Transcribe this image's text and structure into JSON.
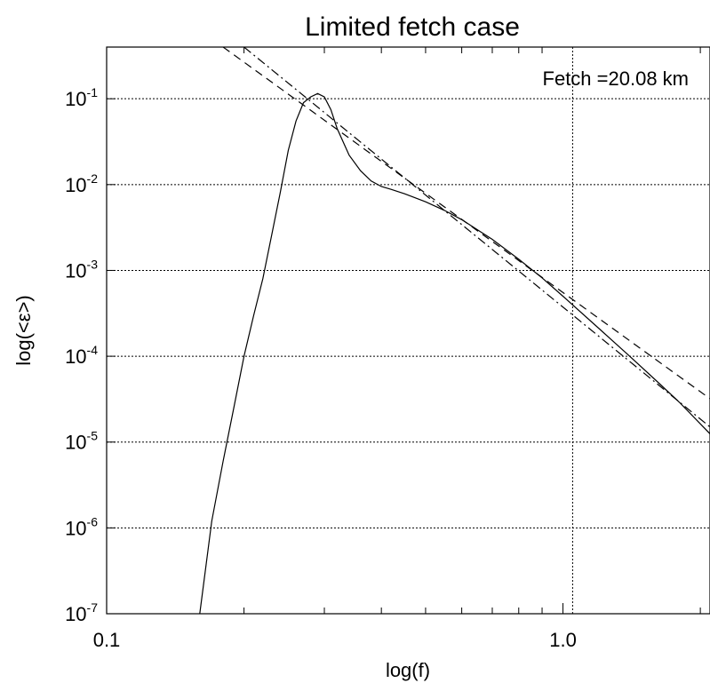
{
  "chart_data": {
    "type": "line",
    "title": "Limited fetch case",
    "xlabel": "log(f)",
    "ylabel": "log(<ε>)",
    "xscale": "log",
    "yscale": "log",
    "xlim": [
      0.1,
      2.1
    ],
    "ylim": [
      1e-07,
      0.4
    ],
    "x_ticks": [
      {
        "value": 0.1,
        "label": "0.1"
      },
      {
        "value": 1.0,
        "label": "1.0"
      }
    ],
    "x_minor_ticks": [
      0.2,
      0.3,
      0.4,
      0.5,
      0.6,
      0.7,
      0.8,
      0.9,
      2.0
    ],
    "y_ticks": [
      {
        "value": 1e-07,
        "base": "10",
        "exp": "-7"
      },
      {
        "value": 1e-06,
        "base": "10",
        "exp": "-6"
      },
      {
        "value": 1e-05,
        "base": "10",
        "exp": "-5"
      },
      {
        "value": 0.0001,
        "base": "10",
        "exp": "-4"
      },
      {
        "value": 0.001,
        "base": "10",
        "exp": "-3"
      },
      {
        "value": 0.01,
        "base": "10",
        "exp": "-2"
      },
      {
        "value": 0.1,
        "base": "10",
        "exp": "-1"
      }
    ],
    "grid": {
      "horizontal": "at major y ticks",
      "vertical_x": [
        1.05
      ],
      "style": "dashed"
    },
    "annotation": "Fetch =20.08 km",
    "series": [
      {
        "style": "solid",
        "x": [
          0.16,
          0.17,
          0.18,
          0.19,
          0.2,
          0.21,
          0.22,
          0.23,
          0.24,
          0.25,
          0.26,
          0.27,
          0.28,
          0.29,
          0.3,
          0.31,
          0.32,
          0.34,
          0.36,
          0.38,
          0.4,
          0.42,
          0.45,
          0.5,
          0.55,
          0.6,
          0.7,
          0.8,
          0.9,
          1.0,
          1.2,
          1.4,
          1.6,
          1.8,
          2.1
        ],
        "y": [
          1e-07,
          1.2e-06,
          6e-06,
          2.5e-05,
          0.0001,
          0.0003,
          0.0008,
          0.0026,
          0.008,
          0.025,
          0.055,
          0.09,
          0.105,
          0.115,
          0.105,
          0.075,
          0.045,
          0.022,
          0.0145,
          0.011,
          0.0095,
          0.0088,
          0.0078,
          0.0063,
          0.005,
          0.0039,
          0.0023,
          0.00135,
          0.00082,
          0.0005,
          0.00021,
          0.0001,
          5.2e-05,
          2.9e-05,
          1.25e-05
        ]
      },
      {
        "style": "dashed",
        "x": [
          0.18,
          2.1
        ],
        "y": [
          0.4,
          3.2e-05
        ]
      },
      {
        "style": "dashdot",
        "x": [
          0.2,
          2.1
        ],
        "y": [
          0.4,
          1.5e-05
        ]
      }
    ]
  }
}
